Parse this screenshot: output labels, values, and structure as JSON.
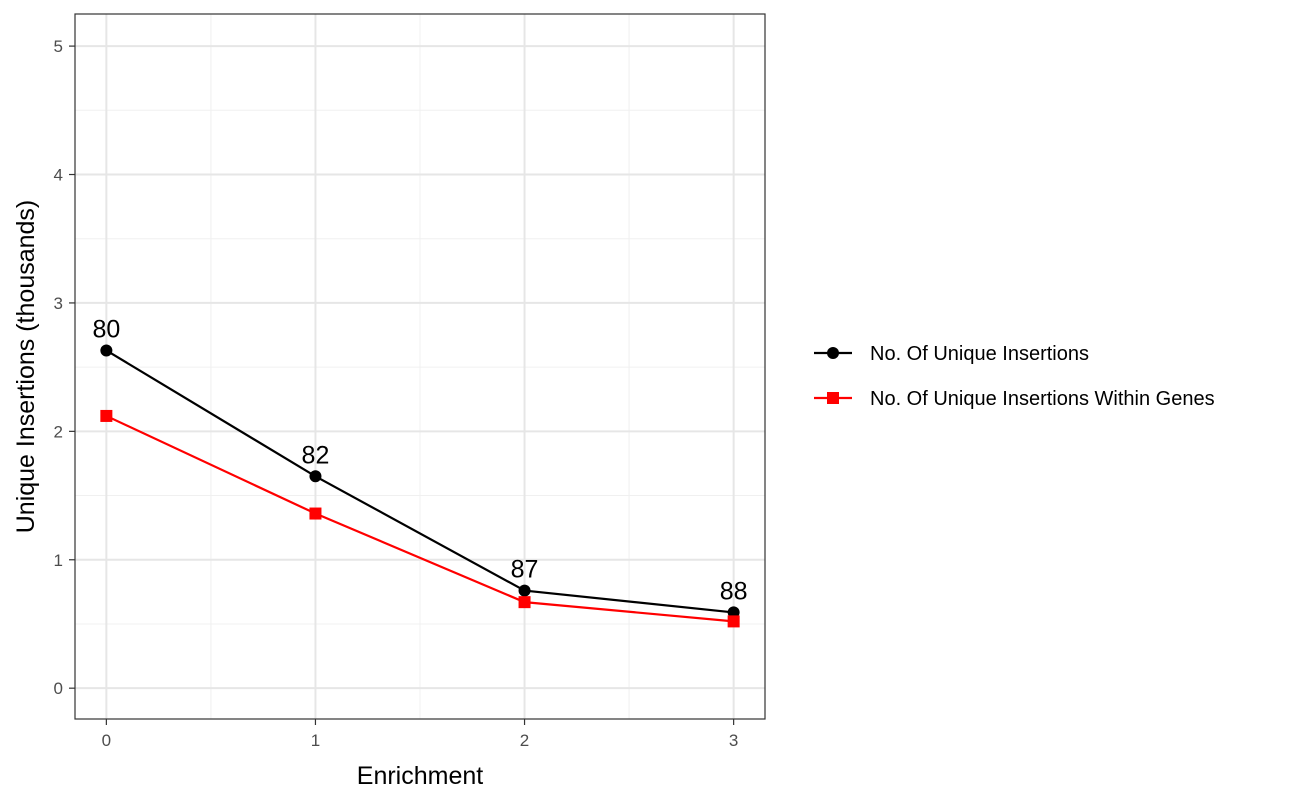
{
  "chart_data": {
    "type": "line",
    "title": "",
    "xlabel": "Enrichment",
    "ylabel": "Unique Insertions (thousands)",
    "x": [
      0,
      1,
      2,
      3
    ],
    "xlim": [
      -0.15,
      3.15
    ],
    "ylim": [
      -0.24,
      5.25
    ],
    "x_ticks": [
      "0",
      "1",
      "2",
      "3"
    ],
    "y_ticks": [
      "0",
      "1",
      "2",
      "3",
      "4",
      "5"
    ],
    "grid": true,
    "legend_position": "right",
    "series": [
      {
        "name": "No. Of Unique Insertions",
        "values": [
          2.63,
          1.65,
          0.76,
          0.59
        ],
        "color": "#000000",
        "marker": "circle"
      },
      {
        "name": "No. Of Unique Insertions Within Genes",
        "values": [
          2.12,
          1.36,
          0.67,
          0.52
        ],
        "color": "#ff0000",
        "marker": "square"
      }
    ],
    "annotations": [
      {
        "x": 0,
        "y": 2.63,
        "text": "80"
      },
      {
        "x": 1,
        "y": 1.65,
        "text": "82"
      },
      {
        "x": 2,
        "y": 0.76,
        "text": "87"
      },
      {
        "x": 3,
        "y": 0.59,
        "text": "88"
      }
    ]
  }
}
